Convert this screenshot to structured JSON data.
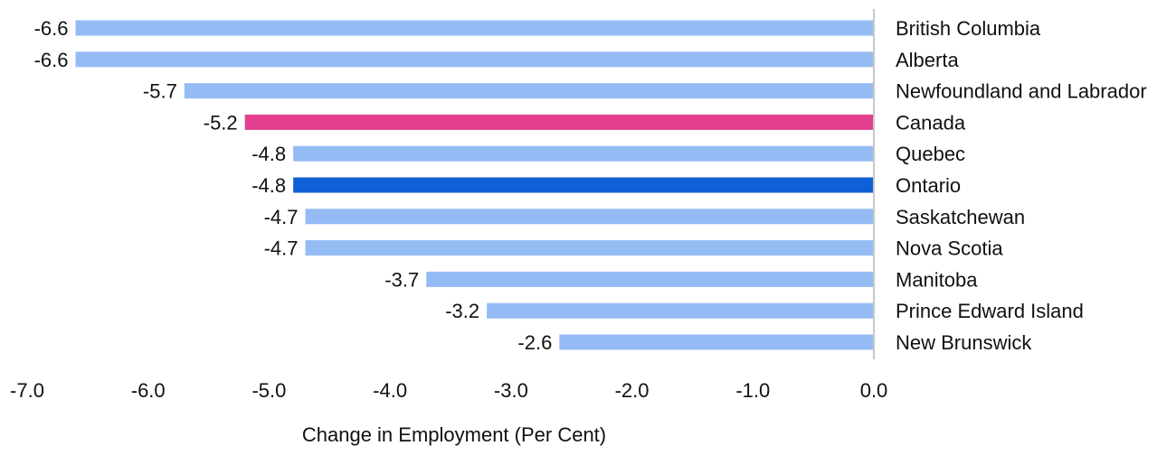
{
  "chart_data": {
    "type": "bar",
    "orientation": "horizontal",
    "categories": [
      "British Columbia",
      "Alberta",
      "Newfoundland and Labrador",
      "Canada",
      "Quebec",
      "Ontario",
      "Saskatchewan",
      "Nova Scotia",
      "Manitoba",
      "Prince Edward Island",
      "New Brunswick"
    ],
    "values": [
      -6.6,
      -6.6,
      -5.7,
      -5.2,
      -4.8,
      -4.8,
      -4.7,
      -4.7,
      -3.7,
      -3.2,
      -2.6
    ],
    "value_labels": [
      "-6.6",
      "-6.6",
      "-5.7",
      "-5.2",
      "-4.8",
      "-4.8",
      "-4.7",
      "-4.7",
      "-3.7",
      "-3.2",
      "-2.6"
    ],
    "xlabel": "Change in Employment (Per Cent)",
    "xlim": [
      -7.0,
      0.0
    ],
    "xticks": [
      -7.0,
      -6.0,
      -5.0,
      -4.0,
      -3.0,
      -2.0,
      -1.0,
      0.0
    ],
    "xtick_labels": [
      "-7.0",
      "-6.0",
      "-5.0",
      "-4.0",
      "-3.0",
      "-2.0",
      "-1.0",
      "0.0"
    ],
    "grid": false,
    "legend": "none",
    "colors": {
      "default": "#95bbf5",
      "Canada": "#e43f8f",
      "Ontario": "#0f5fd6"
    }
  }
}
